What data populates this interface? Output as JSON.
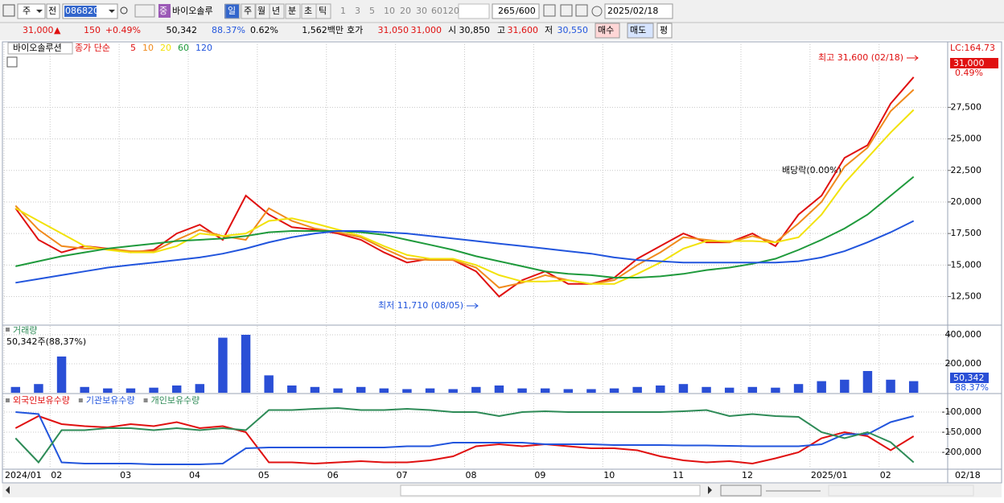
{
  "toolbar": {
    "market": "주",
    "prev": "전",
    "code": "086820",
    "tag": "중",
    "name": "바이오솔루",
    "periods": [
      "일",
      "주",
      "월",
      "년",
      "분",
      "초",
      "틱"
    ],
    "intervals": [
      "1",
      "3",
      "5",
      "10",
      "20",
      "30",
      "60",
      "120"
    ],
    "count": "265",
    "max": "/600",
    "date": "2025/02/18"
  },
  "quote_bar": {
    "price": "31,000",
    "arrow": "▲",
    "change": "150",
    "rate": "+0.49%",
    "volume": "50,342",
    "volume_ratio": "88.37%",
    "turnover": "0.62%",
    "amount": "1,562백만",
    "ask_label": "호가",
    "ask": "31,050",
    "bid": "31,000",
    "open_label": "시",
    "open": "30,850",
    "high_label": "고",
    "high": "31,600",
    "low_label": "저",
    "low": "30,550",
    "buttons": [
      "매수",
      "매도",
      "평"
    ]
  },
  "chart_data": [
    {
      "type": "line",
      "title": "바이오솔루션",
      "subtitle": "종가 단순",
      "categories": [
        "2024/01",
        null,
        "02",
        null,
        null,
        "03",
        null,
        null,
        "04",
        null,
        null,
        "05",
        null,
        null,
        "06",
        null,
        null,
        "07",
        null,
        null,
        "08",
        null,
        null,
        "09",
        null,
        null,
        "10",
        null,
        null,
        "11",
        null,
        null,
        "12",
        null,
        null,
        "2025/01",
        null,
        null,
        "02",
        null
      ],
      "series": [
        {
          "name": "5",
          "color": "#e01010",
          "values": [
            19500,
            17000,
            16000,
            16500,
            16300,
            16000,
            16200,
            17500,
            18200,
            17000,
            20500,
            19000,
            18000,
            17800,
            17500,
            17000,
            16000,
            15200,
            15500,
            15400,
            14500,
            12500,
            13800,
            14500,
            13500,
            13500,
            14000,
            15500,
            16500,
            17500,
            16800,
            16800,
            17500,
            16500,
            19000,
            20500,
            23500,
            24500,
            27800,
            29900
          ]
        },
        {
          "name": "10",
          "color": "#f08a1c",
          "values": [
            19700,
            17800,
            16500,
            16300,
            16300,
            16100,
            16100,
            17000,
            17800,
            17300,
            17000,
            19500,
            18500,
            17900,
            17600,
            17200,
            16300,
            15500,
            15400,
            15400,
            14800,
            13200,
            13600,
            14200,
            13800,
            13500,
            13800,
            15000,
            16000,
            17200,
            17000,
            16800,
            17300,
            16800,
            18300,
            20000,
            22800,
            24300,
            27200,
            28900
          ]
        },
        {
          "name": "20",
          "color": "#f2e20a",
          "values": [
            19500,
            18500,
            17500,
            16500,
            16200,
            16000,
            16000,
            16500,
            17500,
            17300,
            17500,
            18500,
            18700,
            18300,
            17800,
            17300,
            16500,
            15800,
            15500,
            15500,
            15000,
            14200,
            13700,
            13700,
            13800,
            13500,
            13500,
            14300,
            15200,
            16300,
            16900,
            16900,
            16900,
            16800,
            17200,
            19000,
            21500,
            23500,
            25500,
            27300
          ]
        },
        {
          "name": "60",
          "color": "#1f9a3c",
          "values": [
            14900,
            15300,
            15700,
            16000,
            16300,
            16500,
            16700,
            16900,
            17000,
            17100,
            17300,
            17600,
            17700,
            17700,
            17700,
            17600,
            17400,
            17000,
            16600,
            16200,
            15700,
            15300,
            14900,
            14500,
            14300,
            14200,
            14000,
            14000,
            14100,
            14300,
            14600,
            14800,
            15100,
            15500,
            16200,
            17000,
            17900,
            19000,
            20500,
            22000
          ]
        },
        {
          "name": "120",
          "color": "#2255dd",
          "values": [
            13600,
            13900,
            14200,
            14500,
            14800,
            15000,
            15200,
            15400,
            15600,
            15900,
            16300,
            16800,
            17200,
            17500,
            17700,
            17700,
            17600,
            17500,
            17300,
            17100,
            16900,
            16700,
            16500,
            16300,
            16100,
            15900,
            15600,
            15400,
            15300,
            15200,
            15200,
            15200,
            15200,
            15200,
            15300,
            15600,
            16100,
            16800,
            17600,
            18500
          ]
        }
      ],
      "ylim": [
        10300,
        32500
      ],
      "yticks": [
        {
          "value": 12500,
          "label": "12,500"
        },
        {
          "value": 15000,
          "label": "15,000"
        },
        {
          "value": 17500,
          "label": "17,500"
        },
        {
          "value": 20000,
          "label": "20,000"
        },
        {
          "value": 22500,
          "label": "22,500"
        },
        {
          "value": 25000,
          "label": "25,000"
        },
        {
          "value": 27500,
          "label": "27,500"
        }
      ],
      "grid": true,
      "last_price": "31,000",
      "change_rate": "0.49%",
      "scale_note": "LC:164.73",
      "annotations": [
        "최고 31,600 (02/18)",
        "최저 11,710 (08/05)",
        "배당락(0.00%)"
      ]
    },
    {
      "type": "bar",
      "title": "거래량",
      "subtitle": "50,342주(88,37%)",
      "color": "#2a4fd6",
      "values": [
        40000,
        60000,
        250000,
        40000,
        30000,
        30000,
        35000,
        50000,
        60000,
        380000,
        400000,
        120000,
        50000,
        40000,
        30000,
        40000,
        30000,
        25000,
        30000,
        25000,
        40000,
        50000,
        30000,
        30000,
        25000,
        25000,
        30000,
        40000,
        50000,
        60000,
        40000,
        35000,
        40000,
        35000,
        60000,
        80000,
        90000,
        150000,
        90000,
        80000
      ],
      "ylim": [
        0,
        461000
      ],
      "yticks": [
        {
          "value": 200000,
          "label": "200,000"
        },
        {
          "value": 400000,
          "label": "400,000"
        }
      ],
      "grid": true,
      "last_value": "50,342",
      "last_ratio": "88.37%"
    },
    {
      "type": "line",
      "series": [
        {
          "name": "외국인보유수량",
          "color": "#e01010",
          "values": [
            -140000,
            -110000,
            -130000,
            -135000,
            -138000,
            -130000,
            -135000,
            -125000,
            -140000,
            -135000,
            -150000,
            -225000,
            -225000,
            -228000,
            -225000,
            -222000,
            -225000,
            -225000,
            -220000,
            -210000,
            -185000,
            -180000,
            -185000,
            -180000,
            -185000,
            -190000,
            -190000,
            -195000,
            -210000,
            -220000,
            -225000,
            -222000,
            -228000,
            -215000,
            -200000,
            -165000,
            -150000,
            -160000,
            -195000,
            -160000
          ]
        },
        {
          "name": "기관보유수량",
          "color": "#2255dd",
          "values": [
            -100000,
            -105000,
            -225000,
            -228000,
            -228000,
            -228000,
            -230000,
            -230000,
            -230000,
            -228000,
            -190000,
            -188000,
            -188000,
            -188000,
            -188000,
            -188000,
            -188000,
            -185000,
            -185000,
            -176000,
            -176000,
            -176000,
            -176000,
            -180000,
            -180000,
            -180000,
            -182000,
            -182000,
            -182000,
            -183000,
            -183000,
            -184000,
            -185000,
            -185000,
            -185000,
            -180000,
            -155000,
            -155000,
            -125000,
            -110000
          ]
        },
        {
          "name": "개인보유수량",
          "color": "#2e8b57",
          "values": [
            -165000,
            -225000,
            -145000,
            -145000,
            -140000,
            -140000,
            -145000,
            -140000,
            -145000,
            -140000,
            -145000,
            -95000,
            -95000,
            -92000,
            -90000,
            -95000,
            -95000,
            -92000,
            -95000,
            -100000,
            -100000,
            -110000,
            -100000,
            -98000,
            -100000,
            -100000,
            -100000,
            -100000,
            -100000,
            -98000,
            -95000,
            -110000,
            -105000,
            -110000,
            -112000,
            -150000,
            -165000,
            -150000,
            -175000,
            -225000
          ]
        }
      ],
      "ylim": [
        -240000,
        -60000
      ],
      "yticks": [
        {
          "value": -200000,
          "label": "-200,000"
        },
        {
          "value": -150000,
          "label": "-150,000"
        },
        {
          "value": -100000,
          "label": "-100,000"
        }
      ],
      "grid": true
    }
  ],
  "x_end_label": "02/18"
}
